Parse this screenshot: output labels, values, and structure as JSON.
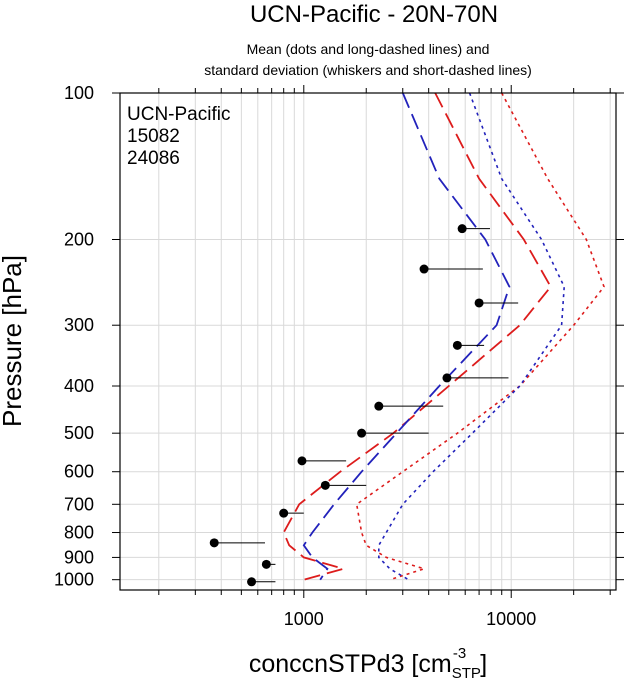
{
  "chart_data": {
    "type": "line",
    "title": "UCN-Pacific - 20N-70N",
    "subtitle_lines": [
      "Mean (dots and long-dashed lines) and",
      "standard deviation (whiskers and short-dashed lines)"
    ],
    "xlabel": {
      "base": "conccnSTPd3 [cm",
      "superscript": "-3",
      "subscript": "STP",
      "close": "]"
    },
    "ylabel": "Pressure [hPa]",
    "x_scale": "log",
    "y_scale": "log",
    "xlim": [
      130,
      32000
    ],
    "ylim": [
      1050,
      100
    ],
    "x_ticks": [
      {
        "value": 1000,
        "label": "1000"
      },
      {
        "value": 10000,
        "label": "10000"
      }
    ],
    "y_ticks": [
      {
        "value": 100,
        "label": "100"
      },
      {
        "value": 200,
        "label": "200"
      },
      {
        "value": 300,
        "label": "300"
      },
      {
        "value": 400,
        "label": "400"
      },
      {
        "value": 500,
        "label": "500"
      },
      {
        "value": 600,
        "label": "600"
      },
      {
        "value": 700,
        "label": "700"
      },
      {
        "value": 800,
        "label": "800"
      },
      {
        "value": 900,
        "label": "900"
      },
      {
        "value": 1000,
        "label": "1000"
      }
    ],
    "grid": true,
    "legend": {
      "position": "top-left",
      "entries": [
        {
          "label": "UCN-Pacific",
          "color": "#000000"
        },
        {
          "label": "15082",
          "color": "#dd1c1c"
        },
        {
          "label": "24086",
          "color": "#2222bb"
        }
      ]
    },
    "points": {
      "name": "UCN-Pacific",
      "color": "#000000",
      "pressure": [
        190,
        230,
        270,
        330,
        385,
        440,
        500,
        570,
        640,
        730,
        840,
        930,
        1010
      ],
      "mean": [
        5800,
        3800,
        7000,
        5500,
        4900,
        2300,
        1900,
        980,
        1270,
        800,
        370,
        660,
        560
      ],
      "mean_plus_sd": [
        7900,
        7300,
        10800,
        7400,
        9700,
        4700,
        4000,
        1600,
        2000,
        1000,
        650,
        730,
        730
      ]
    },
    "series": [
      {
        "name": "15082",
        "color": "#dd1c1c",
        "pressure": [
          100,
          150,
          200,
          250,
          300,
          400,
          500,
          600,
          700,
          800,
          850,
          900,
          950,
          1000
        ],
        "mean": [
          4300,
          7000,
          11500,
          15500,
          11000,
          5000,
          2700,
          1500,
          950,
          800,
          850,
          1000,
          1550,
          1000
        ],
        "mean_plus_sd": [
          9000,
          15000,
          23000,
          28000,
          20000,
          11000,
          5500,
          3000,
          1800,
          1900,
          2000,
          2500,
          3800,
          2600
        ]
      },
      {
        "name": "24086",
        "color": "#2222bb",
        "pressure": [
          100,
          150,
          200,
          250,
          300,
          400,
          500,
          600,
          700,
          800,
          850,
          900,
          950,
          1000
        ],
        "mean": [
          3000,
          4500,
          7500,
          9800,
          8500,
          4500,
          2800,
          1900,
          1400,
          1100,
          1000,
          1100,
          1300,
          1200
        ],
        "mean_plus_sd": [
          6300,
          9000,
          14000,
          18000,
          17500,
          11000,
          6500,
          4200,
          3000,
          2500,
          2300,
          2300,
          2600,
          3200
        ]
      }
    ]
  }
}
